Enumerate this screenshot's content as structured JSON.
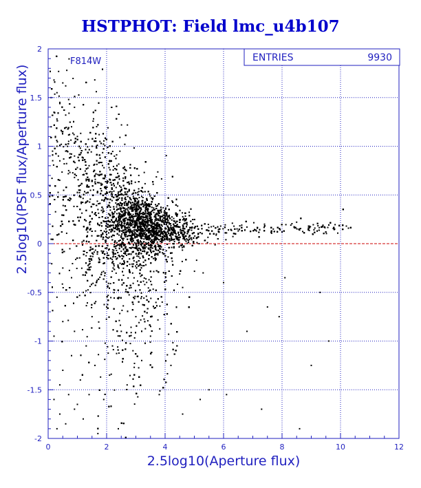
{
  "chart_data": {
    "type": "scatter",
    "title": "HSTPHOT: Field lmc_u4b107",
    "xlabel": "2.5log10(Aperture flux)",
    "ylabel": "2.5log10(PSF flux/Aperture flux)",
    "xlim": [
      0,
      12
    ],
    "ylim": [
      -2,
      2
    ],
    "xticks": [
      0,
      2,
      4,
      6,
      8,
      10,
      12
    ],
    "yticks": [
      -2,
      -1.5,
      -1,
      -0.5,
      0,
      0.5,
      1,
      1.5,
      2
    ],
    "xtick_labels": [
      "0",
      "2",
      "4",
      "6",
      "8",
      "10",
      "12"
    ],
    "ytick_labels": [
      "-2",
      "-1.5",
      "-1",
      "-0.5",
      "0",
      "0.5",
      "1",
      "1.5",
      "2"
    ],
    "grid": true,
    "reference_line": {
      "y": 0,
      "color": "#cc0000"
    },
    "annotation": "F814W",
    "stats_box": {
      "label": "ENTRIES",
      "value": "9930"
    },
    "entries": 9930,
    "point_color": "#000000",
    "axis_color": "#1f1fbf",
    "title_color": "#0000cc",
    "points": [
      [
        0.2,
        1.68
      ],
      [
        0.5,
        1.65
      ],
      [
        0.6,
        1.62
      ],
      [
        0.3,
        1.55
      ],
      [
        0.1,
        1.5
      ],
      [
        0.7,
        1.48
      ],
      [
        0.4,
        1.45
      ],
      [
        0.9,
        1.4
      ],
      [
        0.2,
        1.35
      ],
      [
        0.6,
        1.32
      ],
      [
        0.3,
        1.28
      ],
      [
        0.8,
        1.2
      ],
      [
        0.5,
        1.15
      ],
      [
        1.0,
        1.1
      ],
      [
        0.7,
        1.05
      ],
      [
        0.3,
        1.0
      ],
      [
        1.1,
        0.98
      ],
      [
        0.6,
        0.95
      ],
      [
        0.9,
        0.9
      ],
      [
        1.2,
        0.88
      ],
      [
        0.4,
        0.85
      ],
      [
        1.4,
        0.8
      ],
      [
        1.0,
        0.78
      ],
      [
        0.7,
        0.75
      ],
      [
        1.3,
        0.72
      ],
      [
        1.6,
        0.7
      ],
      [
        0.9,
        0.68
      ],
      [
        1.5,
        0.65
      ],
      [
        1.8,
        0.62
      ],
      [
        1.1,
        0.6
      ],
      [
        2.6,
        0.72
      ],
      [
        3.1,
        0.7
      ],
      [
        0.1,
        1.2
      ],
      [
        0.15,
        0.95
      ],
      [
        0.25,
        1.1
      ],
      [
        0.35,
        0.9
      ],
      [
        0.45,
        1.02
      ],
      [
        0.55,
        0.82
      ],
      [
        0.8,
        0.92
      ],
      [
        1.05,
        0.55
      ],
      [
        0.2,
        -1.6
      ],
      [
        0.4,
        -1.75
      ],
      [
        0.6,
        -1.85
      ],
      [
        0.3,
        -1.9
      ],
      [
        0.9,
        -1.7
      ],
      [
        1.2,
        -1.8
      ],
      [
        0.5,
        -1.3
      ],
      [
        0.8,
        -1.15
      ],
      [
        1.1,
        -1.4
      ],
      [
        1.4,
        -1.55
      ],
      [
        1.7,
        -1.95
      ],
      [
        2.4,
        -1.9
      ],
      [
        1.3,
        -1.05
      ],
      [
        0.2,
        -0.95
      ],
      [
        0.5,
        -0.8
      ],
      [
        0.9,
        -0.9
      ],
      [
        1.6,
        -1.25
      ],
      [
        2.1,
        -1.35
      ],
      [
        1.9,
        -1.6
      ],
      [
        0.4,
        -1.45
      ],
      [
        0.7,
        -1.55
      ],
      [
        1.0,
        -1.65
      ],
      [
        2.7,
        -1.45
      ],
      [
        3.2,
        -1.2
      ],
      [
        3.8,
        -1.55
      ],
      [
        4.6,
        -1.75
      ],
      [
        5.5,
        -1.5
      ],
      [
        6.1,
        -1.55
      ],
      [
        7.3,
        -1.7
      ],
      [
        8.6,
        -1.9
      ],
      [
        4.2,
        -1.25
      ],
      [
        2.9,
        -1.1
      ],
      [
        9.0,
        -1.25
      ],
      [
        9.6,
        -1.0
      ],
      [
        7.9,
        -0.75
      ],
      [
        5.2,
        -1.6
      ],
      [
        3.5,
        -0.95
      ],
      [
        2.2,
        -1.05
      ],
      [
        1.5,
        -0.75
      ],
      [
        0.3,
        -0.55
      ],
      [
        6.8,
        -0.9
      ],
      [
        7.5,
        -0.65
      ],
      [
        9.3,
        -0.5
      ],
      [
        8.1,
        -0.35
      ],
      [
        6.0,
        -0.4
      ],
      [
        5.3,
        -0.3
      ],
      [
        4.6,
        -0.45
      ],
      [
        3.9,
        -0.6
      ],
      [
        3.0,
        -0.75
      ],
      [
        2.5,
        -0.9
      ],
      [
        2.0,
        -0.65
      ],
      [
        1.2,
        -0.5
      ],
      [
        0.8,
        -0.35
      ],
      [
        0.5,
        -0.25
      ],
      [
        9.5,
        0.12
      ],
      [
        9.8,
        0.15
      ],
      [
        10.2,
        0.18
      ],
      [
        9.2,
        0.13
      ],
      [
        8.9,
        0.16
      ],
      [
        8.6,
        0.14
      ],
      [
        8.3,
        0.19
      ],
      [
        8.0,
        0.12
      ],
      [
        7.7,
        0.15
      ],
      [
        7.4,
        0.2
      ],
      [
        7.1,
        0.14
      ],
      [
        6.8,
        0.17
      ],
      [
        6.5,
        0.13
      ],
      [
        6.3,
        0.21
      ],
      [
        6.1,
        0.11
      ],
      [
        5.9,
        0.18
      ],
      [
        3.0,
        0.52
      ],
      [
        2.6,
        0.42
      ]
    ]
  }
}
